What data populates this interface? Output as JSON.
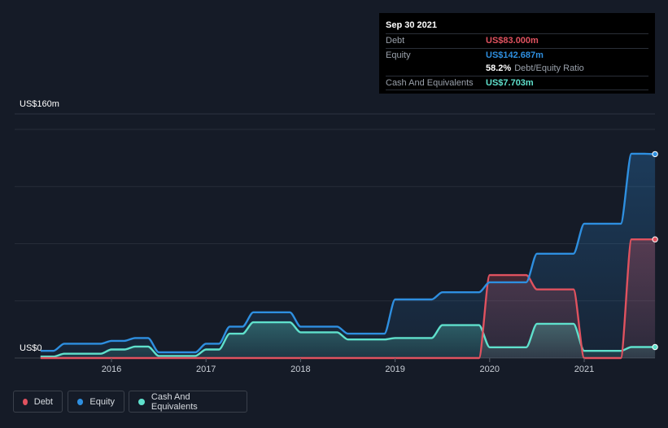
{
  "tooltip": {
    "date": "Sep 30 2021",
    "debt_label": "Debt",
    "debt_value": "US$83.000m",
    "equity_label": "Equity",
    "equity_value": "US$142.687m",
    "ratio_value": "58.2%",
    "ratio_label": "Debt/Equity Ratio",
    "cash_label": "Cash And Equivalents",
    "cash_value": "US$7.703m"
  },
  "legend": [
    {
      "label": "Debt",
      "color": "#e0525f"
    },
    {
      "label": "Equity",
      "color": "#2e8fe0"
    },
    {
      "label": "Cash And Equivalents",
      "color": "#5fe0cc"
    }
  ],
  "colors": {
    "background": "#151b27",
    "debt": "#e0525f",
    "equity": "#2e8fe0",
    "cash": "#5fe0cc"
  },
  "chart_data": {
    "type": "area",
    "ylabel_top": "US$160m",
    "ylabel_bottom": "US$0",
    "ylim": [
      0,
      160
    ],
    "x_ticks": [
      "2016",
      "2017",
      "2018",
      "2019",
      "2020",
      "2021"
    ],
    "grid": true,
    "legend_position": "bottom-left",
    "series": [
      {
        "name": "Equity",
        "x": [
          2015.25,
          2015.5,
          2015.75,
          2016.0,
          2016.25,
          2016.5,
          2016.75,
          2017.0,
          2017.25,
          2017.5,
          2017.75,
          2018.0,
          2018.25,
          2018.5,
          2018.75,
          2019.0,
          2019.25,
          2019.5,
          2019.75,
          2020.0,
          2020.25,
          2020.5,
          2020.75,
          2021.0,
          2021.25,
          2021.5,
          2021.75
        ],
        "values": [
          5,
          10,
          10,
          12,
          14,
          4,
          4,
          10,
          22,
          32,
          32,
          22,
          22,
          17,
          17,
          41,
          41,
          46,
          46,
          53,
          53,
          73,
          73,
          94,
          94,
          143,
          142.7
        ]
      },
      {
        "name": "Debt",
        "x": [
          2015.25,
          2015.5,
          2015.75,
          2016.0,
          2016.25,
          2016.5,
          2016.75,
          2017.0,
          2017.25,
          2017.5,
          2017.75,
          2018.0,
          2018.25,
          2018.5,
          2018.75,
          2019.0,
          2019.25,
          2019.5,
          2019.75,
          2020.0,
          2020.25,
          2020.5,
          2020.75,
          2021.0,
          2021.25,
          2021.5,
          2021.75
        ],
        "values": [
          0,
          0,
          0,
          0,
          0,
          0,
          0,
          0,
          0,
          0,
          0,
          0,
          0,
          0,
          0,
          0,
          0,
          0,
          0,
          58,
          58,
          48,
          48,
          0,
          0,
          83,
          83
        ]
      },
      {
        "name": "Cash And Equivalents",
        "x": [
          2015.25,
          2015.5,
          2015.75,
          2016.0,
          2016.25,
          2016.5,
          2016.75,
          2017.0,
          2017.25,
          2017.5,
          2017.75,
          2018.0,
          2018.25,
          2018.5,
          2018.75,
          2019.0,
          2019.25,
          2019.5,
          2019.75,
          2020.0,
          2020.25,
          2020.5,
          2020.75,
          2021.0,
          2021.25,
          2021.5,
          2021.75
        ],
        "values": [
          1,
          3,
          3,
          6,
          8,
          1.5,
          1.5,
          6,
          17,
          25,
          25,
          18,
          18,
          13,
          13,
          14,
          14,
          23,
          23,
          7.5,
          7.5,
          24,
          24,
          5,
          5,
          7.7,
          7.7
        ]
      }
    ]
  }
}
